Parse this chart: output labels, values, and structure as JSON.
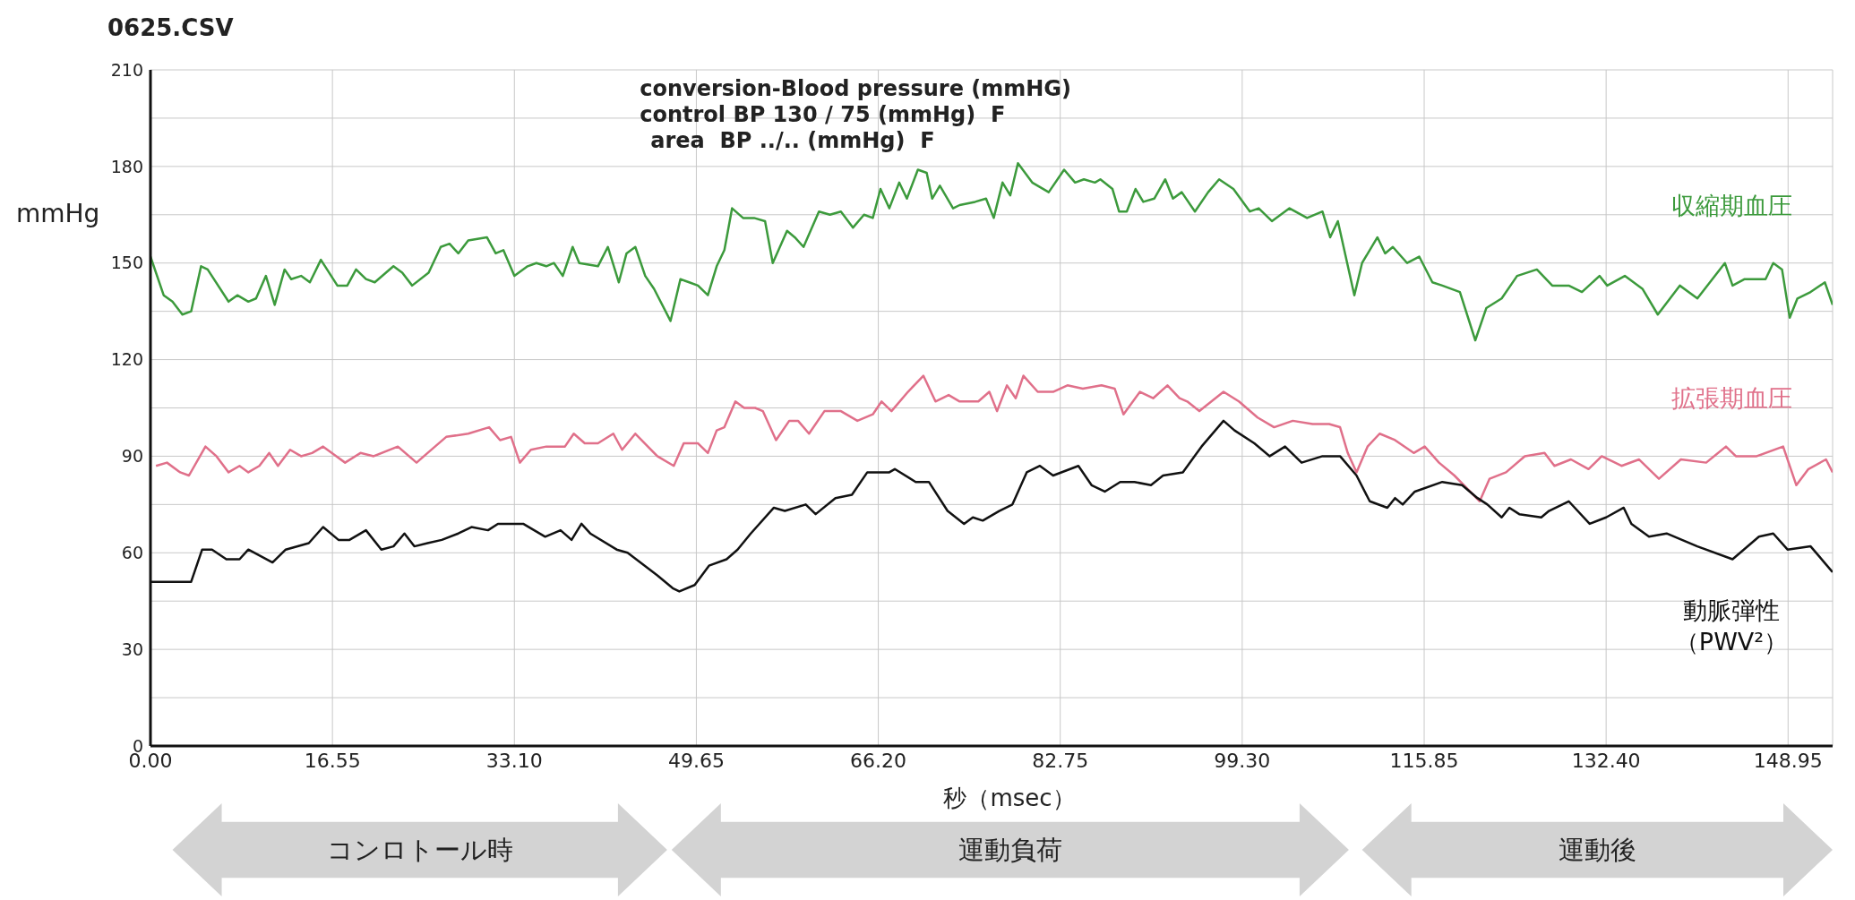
{
  "chart_data": {
    "type": "line",
    "title": "0625.CSV",
    "xlabel": "秒（msec）",
    "ylabel": "mmHg",
    "annotations": [
      "conversion-Blood pressure (mmHG)",
      "control BP 130 / 75 (mmHg)  F",
      "area  BP ../.. (mmHg)  F",
      "コンロトール時",
      "運動負荷",
      "運動後"
    ],
    "xlim": [
      0,
      153
    ],
    "ylim": [
      0,
      210
    ],
    "xticks": [
      {
        "value": 0,
        "label": "0.00"
      },
      {
        "value": 16.55,
        "label": "16.55"
      },
      {
        "value": 33.1,
        "label": "33.10"
      },
      {
        "value": 49.65,
        "label": "49.65"
      },
      {
        "value": 66.2,
        "label": "66.20"
      },
      {
        "value": 82.75,
        "label": "82.75"
      },
      {
        "value": 99.3,
        "label": "99.30"
      },
      {
        "value": 115.85,
        "label": "115.85"
      },
      {
        "value": 132.4,
        "label": "132.40"
      },
      {
        "value": 148.95,
        "label": "148.95"
      }
    ],
    "yticks": [
      0,
      {
        "value": 15,
        "label": null
      },
      30,
      {
        "value": 45,
        "label": null
      },
      60,
      {
        "value": 75,
        "label": null
      },
      90,
      {
        "value": 105,
        "label": null
      },
      120,
      {
        "value": 135,
        "label": null
      },
      150,
      {
        "value": 165,
        "label": null
      },
      180,
      {
        "value": 195,
        "label": null
      },
      210
    ],
    "grid": true,
    "legend": false,
    "marker": "none",
    "line_style": "solid",
    "series": [
      {
        "name": "収縮期血圧",
        "color": "#3c9a3c",
        "x": [
          0,
          1.2,
          2,
          2.9,
          3.7,
          4.6,
          5.2,
          7.1,
          7.9,
          8.9,
          9.6,
          10.5,
          11.3,
          12.2,
          12.8,
          13.7,
          14.5,
          15.5,
          17,
          17.9,
          18.7,
          19.6,
          20.4,
          22.1,
          22.9,
          23.8,
          25.3,
          26.4,
          27.2,
          28,
          28.9,
          30.6,
          31.4,
          32.1,
          33.1,
          34.3,
          35.1,
          36,
          36.7,
          37.5,
          38.4,
          39,
          40.7,
          41.6,
          42.6,
          43.3,
          44.1,
          45,
          45.8,
          47.3,
          48.2,
          49,
          49.8,
          50.7,
          51.5,
          52.2,
          52.9,
          53.9,
          54.9,
          55.9,
          56.6,
          57.9,
          58.6,
          59.4,
          60.8,
          61.8,
          62.8,
          63.9,
          64.9,
          65.7,
          66.4,
          67.2,
          68.1,
          68.8,
          69.8,
          70.6,
          71.1,
          71.8,
          73,
          73.6,
          75,
          76,
          76.7,
          77.5,
          78.2,
          78.9,
          80.2,
          81.7,
          83.1,
          84.1,
          84.9,
          85.9,
          86.4,
          87.5,
          88.1,
          88.8,
          89.6,
          90.3,
          91.3,
          92.3,
          93,
          93.8,
          95,
          96.2,
          97.2,
          98.5,
          100,
          100.8,
          102,
          103.6,
          105.2,
          106.6,
          107.3,
          108,
          109.5,
          110.2,
          111.6,
          112.3,
          113,
          114.3,
          115.4,
          116.6,
          117.5,
          119.1,
          120.5,
          121.5,
          122.9,
          124.3,
          126.1,
          127.5,
          129,
          130.2,
          131.8,
          132.5,
          134.1,
          135.7,
          137.1,
          139.1,
          140.7,
          143.2,
          143.9,
          145,
          146.9,
          147.6,
          148.4,
          149.1,
          149.8,
          151,
          152.3,
          153
        ],
        "values": [
          152,
          140,
          138,
          134,
          135,
          149,
          148,
          138,
          140,
          138,
          139,
          146,
          137,
          148,
          145,
          146,
          144,
          151,
          143,
          143,
          148,
          145,
          144,
          149,
          147,
          143,
          147,
          155,
          156,
          153,
          157,
          158,
          153,
          154,
          146,
          149,
          150,
          149,
          150,
          146,
          155,
          150,
          149,
          155,
          144,
          153,
          155,
          146,
          142,
          132,
          145,
          144,
          143,
          140,
          149,
          154,
          167,
          164,
          164,
          163,
          150,
          160,
          158,
          155,
          166,
          165,
          166,
          161,
          165,
          164,
          173,
          167,
          175,
          170,
          179,
          178,
          170,
          174,
          167,
          168,
          169,
          170,
          164,
          175,
          171,
          181,
          175,
          172,
          179,
          175,
          176,
          175,
          176,
          173,
          166,
          166,
          173,
          169,
          170,
          176,
          170,
          172,
          166,
          172,
          176,
          173,
          166,
          167,
          163,
          167,
          164,
          166,
          158,
          163,
          140,
          150,
          158,
          153,
          155,
          150,
          152,
          144,
          143,
          141,
          126,
          136,
          139,
          146,
          148,
          143,
          143,
          141,
          146,
          143,
          146,
          142,
          134,
          143,
          139,
          150,
          143,
          145,
          145,
          150,
          148,
          133,
          139,
          141,
          144,
          137
        ]
      },
      {
        "name": "拡張期血圧",
        "color": "#e0708a",
        "x": [
          0.5,
          1.5,
          2.7,
          3.5,
          5,
          6,
          7.1,
          8.1,
          8.9,
          9.9,
          10.8,
          11.6,
          12.7,
          13.7,
          14.7,
          15.7,
          17.7,
          19.1,
          20.3,
          22.5,
          24.2,
          25.2,
          26.9,
          28.9,
          30.8,
          31.8,
          32.8,
          33.6,
          34.6,
          36,
          37.7,
          38.5,
          39.5,
          40.7,
          42.1,
          42.9,
          44.1,
          46.1,
          47.6,
          48.5,
          49.8,
          50.7,
          51.5,
          52.2,
          53.2,
          54,
          55,
          55.7,
          56.9,
          58.1,
          58.9,
          59.9,
          61.3,
          62.8,
          64.3,
          65.7,
          66.5,
          67.4,
          68.9,
          70.3,
          71.4,
          72.6,
          73.6,
          75.3,
          76.3,
          77,
          77.9,
          78.7,
          79.4,
          80.7,
          82.1,
          83.4,
          84.8,
          86.5,
          87.7,
          88.5,
          90,
          91.2,
          92.5,
          93.6,
          94.3,
          95.4,
          97.6,
          99,
          100.7,
          102.2,
          103.9,
          105.7,
          107.2,
          108.2,
          108.9,
          109.7,
          110.7,
          111.8,
          113.2,
          114.9,
          115.9,
          117.2,
          118.6,
          120.9,
          121.8,
          123.3,
          125,
          126.8,
          127.7,
          129.2,
          130.8,
          132,
          133.8,
          135.4,
          137.2,
          139.2,
          141.5,
          143.3,
          144.2,
          146.1,
          148.5,
          149.7,
          150.8,
          152.4,
          153
        ],
        "values": [
          87,
          88,
          85,
          84,
          93,
          90,
          85,
          87,
          85,
          87,
          91,
          87,
          92,
          90,
          91,
          93,
          88,
          91,
          90,
          93,
          88,
          91,
          96,
          97,
          99,
          95,
          96,
          88,
          92,
          93,
          93,
          97,
          94,
          94,
          97,
          92,
          97,
          90,
          87,
          94,
          94,
          91,
          98,
          99,
          107,
          105,
          105,
          104,
          95,
          101,
          101,
          97,
          104,
          104,
          101,
          103,
          107,
          104,
          110,
          115,
          107,
          109,
          107,
          107,
          110,
          104,
          112,
          108,
          115,
          110,
          110,
          112,
          111,
          112,
          111,
          103,
          110,
          108,
          112,
          108,
          107,
          104,
          110,
          107,
          102,
          99,
          101,
          100,
          100,
          99,
          91,
          85,
          93,
          97,
          95,
          91,
          93,
          88,
          84,
          76,
          83,
          85,
          90,
          91,
          87,
          89,
          86,
          90,
          87,
          89,
          83,
          89,
          88,
          93,
          90,
          90,
          93,
          81,
          86,
          89,
          85
        ]
      },
      {
        "name": "動脈弾性（PWV²）",
        "color": "#111111",
        "x": [
          0,
          3.7,
          4.7,
          5.6,
          6.9,
          8.1,
          8.9,
          11.1,
          12.3,
          14.4,
          15.7,
          17.1,
          18.1,
          19.6,
          21,
          22.1,
          23.1,
          24,
          25.2,
          26.5,
          28,
          29.2,
          30.7,
          31.6,
          33.9,
          35.9,
          37.3,
          38.3,
          39.2,
          40,
          42.4,
          43.4,
          46.1,
          47.5,
          48.1,
          49.5,
          50.8,
          52.4,
          53.4,
          54.6,
          56.7,
          57.7,
          59.6,
          60.5,
          62.3,
          63.8,
          65.2,
          67.2,
          67.7,
          69.6,
          70.8,
          72.5,
          74,
          74.8,
          75.7,
          77.2,
          78.4,
          79.7,
          80.9,
          82.1,
          84.4,
          85.6,
          86.8,
          88.2,
          89.5,
          91,
          92.1,
          93.9,
          95.6,
          97.6,
          98.6,
          100.4,
          101.8,
          103.2,
          104.7,
          106.6,
          108.2,
          109.7,
          110.9,
          112.5,
          113.2,
          113.9,
          115,
          117.5,
          119.3,
          120.7,
          121.6,
          122.9,
          123.6,
          124.5,
          126.5,
          127.2,
          129,
          130.9,
          132.4,
          134,
          134.7,
          136.3,
          137.9,
          140.7,
          143.9,
          146.3,
          147.6,
          148.9,
          151,
          153
        ],
        "values": [
          51,
          51,
          61,
          61,
          58,
          58,
          61,
          57,
          61,
          63,
          68,
          64,
          64,
          67,
          61,
          62,
          66,
          62,
          63,
          64,
          66,
          68,
          67,
          69,
          69,
          65,
          67,
          64,
          69,
          66,
          61,
          60,
          53,
          49,
          48,
          50,
          56,
          58,
          61,
          66,
          74,
          73,
          75,
          72,
          77,
          78,
          85,
          85,
          86,
          82,
          82,
          73,
          69,
          71,
          70,
          73,
          75,
          85,
          87,
          84,
          87,
          81,
          79,
          82,
          82,
          81,
          84,
          85,
          93,
          101,
          98,
          94,
          90,
          93,
          88,
          90,
          90,
          84,
          76,
          74,
          77,
          75,
          79,
          82,
          81,
          77,
          75,
          71,
          74,
          72,
          71,
          73,
          76,
          69,
          71,
          74,
          69,
          65,
          66,
          62,
          58,
          65,
          66,
          61,
          62,
          54
        ]
      }
    ]
  }
}
